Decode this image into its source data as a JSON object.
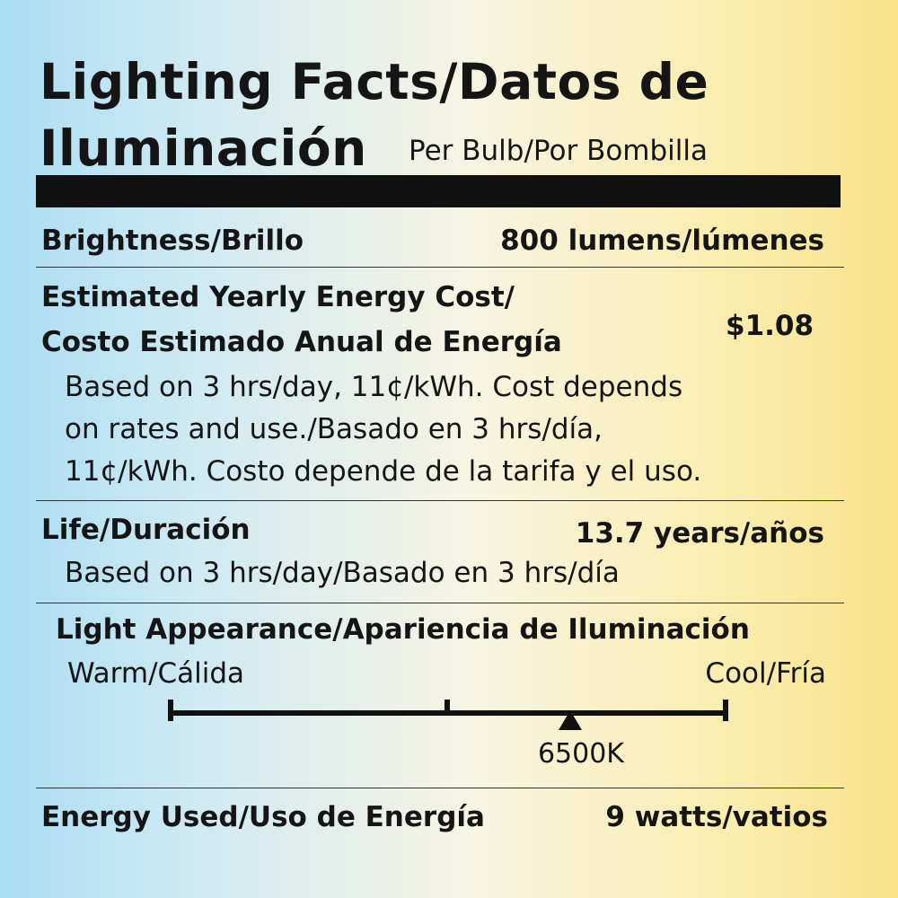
{
  "header": {
    "title_line1": "Lighting Facts/Datos de",
    "title_line2": "Iluminación",
    "per_bulb": "Per Bulb/Por Bombilla"
  },
  "brightness": {
    "label": "Brightness/Brillo",
    "value": "800 lumens/lúmenes"
  },
  "energy_cost": {
    "label_line1": "Estimated Yearly Energy Cost/",
    "label_line2": "Costo Estimado Anual de Energía",
    "value": "$1.08",
    "note_line1": "Based on 3 hrs/day, 11¢/kWh. Cost depends",
    "note_line2": "on rates and use./Basado en 3 hrs/día,",
    "note_line3": "11¢/kWh. Costo depende de la tarifa y el uso."
  },
  "life": {
    "label": "Life/Duración",
    "value": "13.7 years/años",
    "note": "Based on 3 hrs/day/Basado en 3 hrs/día"
  },
  "light_appearance": {
    "label": "Light Appearance/Apariencia de Iluminación",
    "warm_label": "Warm/Cálida",
    "cool_label": "Cool/Fría",
    "marker_label": "6500K",
    "marker_fraction": 0.72
  },
  "energy_used": {
    "label": "Energy Used/Uso de Energía",
    "value": "9 watts/vatios"
  }
}
